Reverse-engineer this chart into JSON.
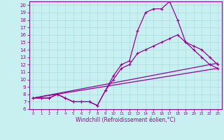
{
  "title": "",
  "xlabel": "Windchill (Refroidissement éolien,°C)",
  "background_color": "#c8f0f0",
  "grid_color": "#a8dce0",
  "line_color": "#990099",
  "xlim": [
    -0.5,
    23.5
  ],
  "ylim": [
    6,
    20.5
  ],
  "yticks": [
    6,
    7,
    8,
    9,
    10,
    11,
    12,
    13,
    14,
    15,
    16,
    17,
    18,
    19,
    20
  ],
  "xticks": [
    0,
    1,
    2,
    3,
    4,
    5,
    6,
    7,
    8,
    9,
    10,
    11,
    12,
    13,
    14,
    15,
    16,
    17,
    18,
    19,
    20,
    21,
    22,
    23
  ],
  "series1_x": [
    0,
    1,
    2,
    3,
    4,
    5,
    6,
    7,
    8,
    9,
    10,
    11,
    12,
    13,
    14,
    15,
    16,
    17,
    18,
    19,
    20,
    21,
    22,
    23
  ],
  "series1_y": [
    7.5,
    7.5,
    7.5,
    8.0,
    7.5,
    7.0,
    7.0,
    7.0,
    6.5,
    8.5,
    10.5,
    12.0,
    12.5,
    16.5,
    19.0,
    19.5,
    19.5,
    20.5,
    18.0,
    15.0,
    14.0,
    13.0,
    12.0,
    11.5
  ],
  "series2_x": [
    0,
    1,
    2,
    3,
    4,
    5,
    6,
    7,
    8,
    9,
    10,
    11,
    12,
    13,
    14,
    15,
    16,
    17,
    18,
    19,
    20,
    21,
    22,
    23
  ],
  "series2_y": [
    7.5,
    7.5,
    7.5,
    8.0,
    7.5,
    7.0,
    7.0,
    7.0,
    6.5,
    8.5,
    10.0,
    11.5,
    12.0,
    13.5,
    14.0,
    14.5,
    15.0,
    15.5,
    16.0,
    15.0,
    14.5,
    14.0,
    13.0,
    12.0
  ],
  "series3_x": [
    0,
    23
  ],
  "series3_y": [
    7.5,
    11.5
  ],
  "series4_x": [
    0,
    23
  ],
  "series4_y": [
    7.5,
    12.2
  ],
  "tick_fontsize": 5,
  "xlabel_fontsize": 5.5,
  "lw": 0.9,
  "marker_size": 2.5
}
